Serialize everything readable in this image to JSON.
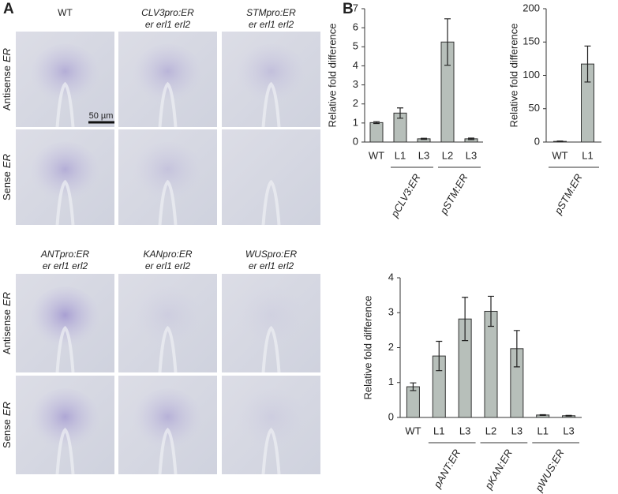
{
  "panel_a": {
    "label": "A",
    "blocks": [
      {
        "columns": [
          [
            "WT"
          ],
          [
            "CLV3pro:ER",
            "er erl1 erl2"
          ],
          [
            "STMpro:ER",
            "er erl1 erl2"
          ]
        ],
        "rows": [
          [
            "Antisense",
            "ER"
          ],
          [
            "Sense",
            "ER"
          ]
        ],
        "scale_bar": "50 µm"
      },
      {
        "columns": [
          [
            "ANTpro:ER",
            "er erl1 erl2"
          ],
          [
            "KANpro:ER",
            "er erl1 erl2"
          ],
          [
            "WUSpro:ER",
            "er erl1 erl2"
          ]
        ],
        "rows": [
          [
            "Antisense",
            "ER"
          ],
          [
            "Sense",
            "ER"
          ]
        ]
      }
    ]
  },
  "panel_b": {
    "label": "B"
  },
  "chart_data": [
    {
      "type": "bar",
      "y_label": "Relative fold difference",
      "categories": [
        "WT",
        "L1",
        "L3",
        "L2",
        "L3"
      ],
      "values": [
        1.02,
        1.52,
        0.17,
        5.25,
        0.17
      ],
      "errors": [
        0.05,
        0.27,
        0.03,
        1.22,
        0.04
      ],
      "color": "#b7bfba",
      "ylim": [
        0,
        7
      ],
      "yticks": [
        0,
        1,
        2,
        3,
        4,
        5,
        6,
        7
      ],
      "groups": [
        {
          "label": "pCLV3:ER",
          "categories": [
            1,
            2
          ]
        },
        {
          "label": "pSTM:ER",
          "categories": [
            3,
            4
          ]
        }
      ]
    },
    {
      "type": "bar",
      "y_label": "Relative fold difference",
      "categories": [
        "WT",
        "L1"
      ],
      "values": [
        1,
        117
      ],
      "errors": [
        0.5,
        27
      ],
      "color": "#b7bfba",
      "ylim": [
        0,
        200
      ],
      "yticks": [
        0,
        50,
        100,
        150,
        200
      ],
      "groups": [
        {
          "label": "pSTM:ER",
          "categories": [
            0,
            1
          ]
        }
      ]
    },
    {
      "type": "bar",
      "y_label": "Relative fold difference",
      "categories": [
        "WT",
        "L1",
        "L3",
        "L2",
        "L3",
        "L1",
        "L3"
      ],
      "values": [
        0.88,
        1.76,
        2.82,
        3.04,
        1.97,
        0.07,
        0.05
      ],
      "errors": [
        0.11,
        0.42,
        0.62,
        0.43,
        0.52,
        0.01,
        0.01
      ],
      "color": "#b7bfba",
      "ylim": [
        0,
        4
      ],
      "yticks": [
        0,
        1,
        2,
        3,
        4
      ],
      "groups": [
        {
          "label": "pANT:ER",
          "categories": [
            1,
            2
          ]
        },
        {
          "label": "pKAN:ER",
          "categories": [
            3,
            4
          ]
        },
        {
          "label": "pWUS:ER",
          "categories": [
            5,
            6
          ]
        }
      ]
    }
  ]
}
